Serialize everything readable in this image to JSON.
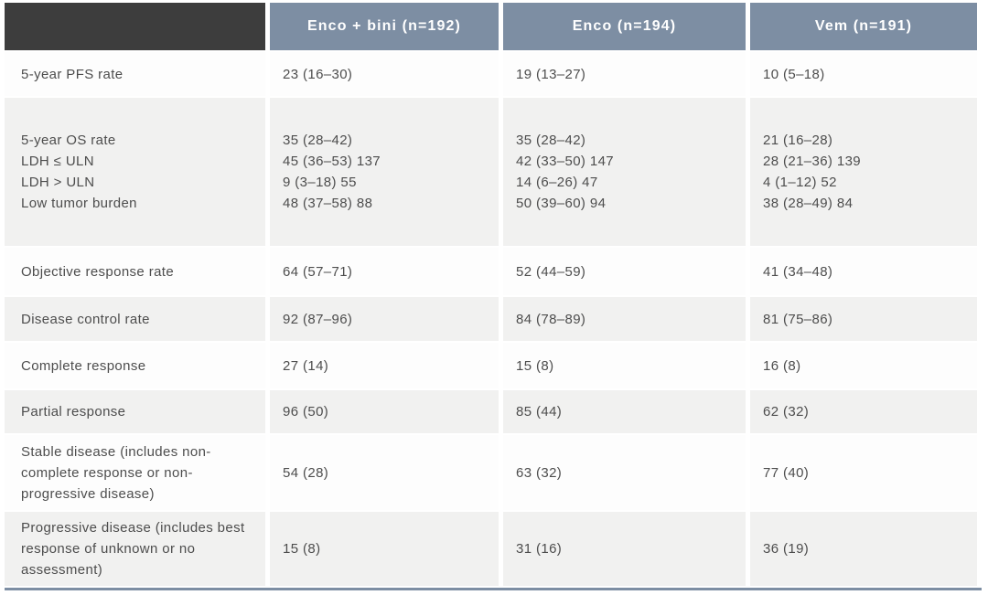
{
  "table": {
    "header": {
      "corner_label": "",
      "columns": [
        "Enco + bini (n=192)",
        "Enco (n=194)",
        "Vem (n=191)"
      ]
    },
    "rows": [
      {
        "label_lines": [
          "5-year PFS rate"
        ],
        "cells": [
          [
            "23 (16–30)"
          ],
          [
            "19 (13–27)"
          ],
          [
            "10 (5–18)"
          ]
        ]
      },
      {
        "label_lines": [
          "5-year OS rate",
          "LDH ≤ ULN",
          "LDH > ULN",
          "Low tumor burden"
        ],
        "cells": [
          [
            "35 (28–42)",
            "45 (36–53) 137",
            "9 (3–18) 55",
            "48 (37–58) 88"
          ],
          [
            "35 (28–42)",
            "42 (33–50) 147",
            "14 (6–26) 47",
            "50 (39–60) 94"
          ],
          [
            "21 (16–28)",
            "28 (21–36) 139",
            "4 (1–12) 52",
            "38 (28–49) 84"
          ]
        ]
      },
      {
        "label_lines": [
          "Objective response rate"
        ],
        "cells": [
          [
            "64 (57–71)"
          ],
          [
            "52 (44–59)"
          ],
          [
            "41 (34–48)"
          ]
        ]
      },
      {
        "label_lines": [
          "Disease control rate"
        ],
        "cells": [
          [
            "92 (87–96)"
          ],
          [
            "84 (78–89)"
          ],
          [
            "81 (75–86)"
          ]
        ]
      },
      {
        "label_lines": [
          "Complete response"
        ],
        "cells": [
          [
            "27 (14)"
          ],
          [
            "15 (8)"
          ],
          [
            "16 (8)"
          ]
        ]
      },
      {
        "label_lines": [
          "Partial response"
        ],
        "cells": [
          [
            "96 (50)"
          ],
          [
            "85 (44)"
          ],
          [
            "62 (32)"
          ]
        ]
      },
      {
        "label_lines": [
          "Stable disease (includes non-complete response or non-progressive disease)"
        ],
        "cells": [
          [
            "54 (28)"
          ],
          [
            "63 (32)"
          ],
          [
            "77 (40)"
          ]
        ]
      },
      {
        "label_lines": [
          "Progressive disease (includes best response of unknown or no assessment)"
        ],
        "cells": [
          [
            "15 (8)"
          ],
          [
            "31 (16)"
          ],
          [
            "36 (19)"
          ]
        ]
      }
    ]
  },
  "colors": {
    "corner_header_bg": "#3d3d3d",
    "column_header_bg": "#7d8ea3",
    "header_text": "#ffffff",
    "row_bg": "#fdfdfd",
    "row_alt_bg": "#f1f1f0",
    "body_text": "#4d4d4d",
    "bottom_rule": "#7d8ea3"
  }
}
